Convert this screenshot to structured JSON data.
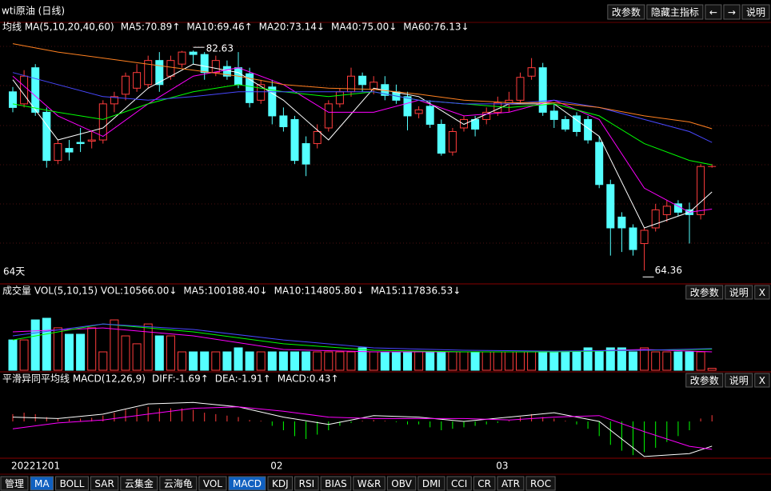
{
  "header": {
    "title": "wti原油 (日线)",
    "buttons": [
      "改参数",
      "隐藏主指标",
      "←",
      "→",
      "说明"
    ]
  },
  "panel_buttons": [
    "改参数",
    "说明",
    "X"
  ],
  "toolbar": [
    {
      "label": "管理",
      "active": false
    },
    {
      "label": "MA",
      "active": true
    },
    {
      "label": "BOLL",
      "active": false
    },
    {
      "label": "SAR",
      "active": false
    },
    {
      "label": "云集金",
      "active": false
    },
    {
      "label": "云海龟",
      "active": false
    },
    {
      "label": "VOL",
      "active": false
    },
    {
      "label": "MACD",
      "active": true
    },
    {
      "label": "KDJ",
      "active": false
    },
    {
      "label": "RSI",
      "active": false
    },
    {
      "label": "BIAS",
      "active": false
    },
    {
      "label": "W&R",
      "active": false
    },
    {
      "label": "OBV",
      "active": false
    },
    {
      "label": "DMI",
      "active": false
    },
    {
      "label": "CCI",
      "active": false
    },
    {
      "label": "CR",
      "active": false
    },
    {
      "label": "ATR",
      "active": false
    },
    {
      "label": "ROC",
      "active": false
    }
  ],
  "chart_data": [
    {
      "type": "candlestick",
      "label": "均线 MA(5,10,20,40,60)",
      "days_label": "64天",
      "up_color": "#ff3c3c",
      "down_color": "#54ffff",
      "ylim": [
        63.45,
        84.3
      ],
      "categories": [
        "20221201",
        null,
        null,
        null,
        null,
        null,
        null,
        null,
        null,
        null,
        null,
        null,
        null,
        null,
        null,
        null,
        null,
        null,
        null,
        null,
        null,
        null,
        null,
        "02",
        null,
        null,
        null,
        null,
        null,
        null,
        null,
        null,
        null,
        null,
        null,
        null,
        null,
        null,
        null,
        null,
        null,
        null,
        null,
        "03",
        null,
        null,
        null,
        null,
        null,
        null,
        null,
        null,
        null,
        null,
        null,
        null,
        null,
        null,
        null,
        null,
        null,
        null,
        null
      ],
      "open": [
        79.2,
        78.2,
        81.2,
        77.5,
        73.5,
        74.5,
        75.0,
        75.1,
        75.2,
        78.2,
        79.0,
        79.5,
        79.8,
        81.8,
        80.5,
        81.5,
        82.5,
        82.3,
        80.8,
        81.3,
        81.2,
        80.7,
        78.5,
        79.6,
        77.2,
        76.9,
        74.9,
        74.9,
        76.2,
        78.2,
        79.2,
        80.5,
        79.4,
        79.8,
        79.2,
        78.8,
        77.4,
        78.0,
        76.5,
        74.2,
        76.2,
        76.9,
        76.9,
        77.5,
        78.2,
        78.5,
        80.5,
        81.2,
        77.6,
        76.9,
        77.2,
        76.9,
        75.0,
        71.5,
        68.8,
        67.9,
        66.6,
        67.9,
        69.0,
        69.9,
        69.4,
        69.0,
        73.0
      ],
      "close": [
        77.9,
        80.5,
        77.5,
        73.5,
        74.9,
        74.2,
        74.9,
        75.2,
        78.2,
        78.8,
        80.5,
        80.8,
        81.8,
        79.8,
        81.8,
        82.5,
        82.3,
        80.8,
        81.8,
        80.5,
        79.8,
        78.3,
        79.8,
        77.2,
        76.3,
        73.5,
        73.2,
        75.9,
        78.2,
        79.2,
        80.5,
        79.8,
        80.0,
        78.9,
        78.5,
        77.2,
        77.7,
        76.5,
        74.1,
        75.9,
        76.9,
        76.1,
        77.5,
        78.3,
        78.5,
        80.4,
        81.2,
        77.5,
        76.9,
        76.1,
        75.9,
        75.2,
        71.5,
        67.9,
        67.9,
        66.1,
        67.7,
        69.4,
        69.7,
        69.2,
        69.0,
        73.0,
        73.0
      ],
      "low": [
        77.5,
        77.9,
        77.2,
        72.9,
        73.2,
        73.5,
        74.2,
        74.5,
        74.9,
        77.5,
        78.5,
        79.2,
        79.5,
        79.2,
        80.2,
        81.2,
        81.5,
        80.2,
        80.5,
        80.2,
        79.5,
        77.9,
        78.2,
        76.5,
        75.9,
        73.2,
        72.2,
        74.5,
        75.9,
        77.9,
        78.8,
        79.2,
        79.0,
        78.5,
        78.2,
        76.0,
        77.0,
        76.2,
        73.9,
        73.9,
        75.9,
        75.5,
        76.5,
        77.2,
        77.5,
        78.2,
        80.2,
        77.2,
        76.2,
        75.9,
        75.5,
        74.9,
        71.2,
        65.6,
        65.9,
        65.6,
        64.36,
        67.6,
        68.4,
        68.9,
        66.6,
        68.6,
        72.9
      ],
      "high": [
        79.6,
        81.0,
        81.5,
        77.9,
        75.2,
        75.2,
        76.2,
        76.0,
        78.5,
        79.2,
        80.8,
        81.5,
        82.2,
        82.5,
        82.2,
        82.6,
        82.63,
        82.5,
        82.2,
        81.8,
        82.5,
        81.2,
        80.2,
        80.2,
        77.9,
        77.2,
        75.5,
        76.5,
        78.5,
        79.5,
        81.2,
        80.8,
        80.5,
        80.5,
        79.8,
        79.2,
        78.0,
        78.5,
        76.9,
        76.2,
        77.2,
        77.2,
        77.9,
        78.8,
        79.2,
        80.8,
        82.0,
        81.6,
        78.2,
        77.2,
        77.5,
        77.2,
        75.5,
        71.9,
        69.2,
        68.2,
        67.9,
        69.9,
        70.2,
        70.2,
        70.0,
        73.2,
        73.2
      ],
      "series": [
        {
          "name": "MA5:70.89↑",
          "color": "#ffffff",
          "x": [
            0,
            4,
            8,
            12,
            16,
            20,
            24,
            28,
            32,
            36,
            40,
            44,
            48,
            52,
            56,
            60,
            62
          ],
          "values": [
            80.2,
            75.2,
            76.2,
            79.5,
            81.5,
            80.8,
            78.5,
            75.2,
            79.5,
            78.8,
            76.5,
            78.2,
            78.2,
            75.5,
            67.9,
            69.2,
            70.89
          ]
        },
        {
          "name": "MA10:69.46↑",
          "color": "#ff00ff",
          "x": [
            0,
            4,
            8,
            12,
            16,
            20,
            24,
            28,
            32,
            36,
            40,
            44,
            48,
            52,
            56,
            60,
            62
          ],
          "values": [
            80.5,
            77.2,
            75.5,
            78.2,
            80.5,
            81.2,
            79.8,
            77.5,
            77.5,
            78.5,
            77.2,
            77.5,
            78.5,
            76.9,
            71.2,
            69.2,
            69.46
          ]
        },
        {
          "name": "MA20:73.14↓",
          "color": "#00ff00",
          "x": [
            0,
            4,
            8,
            12,
            16,
            20,
            24,
            28,
            32,
            36,
            40,
            44,
            48,
            52,
            56,
            60,
            62
          ],
          "values": [
            78.2,
            77.5,
            76.9,
            78.2,
            79.2,
            79.8,
            79.2,
            78.8,
            79.2,
            78.5,
            78.2,
            77.9,
            78.2,
            77.2,
            74.9,
            73.5,
            73.14
          ]
        },
        {
          "name": "MA40:75.00↓",
          "color": "#4848ff",
          "x": [
            0,
            4,
            8,
            12,
            16,
            20,
            24,
            28,
            32,
            36,
            40,
            44,
            48,
            52,
            56,
            60,
            62
          ],
          "values": [
            80.8,
            79.8,
            78.8,
            78.5,
            78.8,
            79.2,
            79.2,
            79.2,
            79.2,
            78.5,
            78.2,
            78.2,
            78.5,
            77.9,
            76.9,
            75.9,
            75.0
          ]
        },
        {
          "name": "MA60:76.13↓",
          "color": "#ff8020",
          "x": [
            0,
            4,
            8,
            12,
            16,
            20,
            24,
            28,
            32,
            36,
            40,
            44,
            48,
            52,
            56,
            60,
            62
          ],
          "values": [
            83.2,
            82.5,
            82.0,
            81.5,
            81.0,
            80.5,
            79.8,
            79.5,
            79.4,
            79.0,
            78.5,
            78.3,
            78.3,
            77.9,
            77.2,
            76.7,
            76.13
          ]
        }
      ]
    },
    {
      "type": "bar",
      "label": "成交量 VOL(5,10,15) VOL:10566.00↓",
      "ylim": [
        0,
        396000
      ],
      "values": [
        165000,
        165000,
        274000,
        283000,
        231000,
        196000,
        196000,
        231000,
        100000,
        274000,
        187000,
        144000,
        252000,
        187000,
        187000,
        100000,
        100000,
        100000,
        100000,
        100000,
        122000,
        100000,
        100000,
        100000,
        100000,
        100000,
        100000,
        100000,
        100000,
        100000,
        100000,
        122000,
        100000,
        100000,
        100000,
        100000,
        100000,
        100000,
        100000,
        100000,
        100000,
        100000,
        100000,
        100000,
        100000,
        100000,
        100000,
        100000,
        100000,
        100000,
        100000,
        122000,
        100000,
        122000,
        122000,
        100000,
        122000,
        100000,
        100000,
        100000,
        100000,
        100000,
        10566
      ],
      "series": [
        {
          "name": "MA5:100188.40↓",
          "color": "#ff00ff",
          "x": [
            0,
            8,
            16,
            24,
            32,
            40,
            48,
            56,
            62
          ],
          "values": [
            209000,
            230000,
            187000,
            113000,
            100000,
            100000,
            100000,
            113000,
            100188.4
          ]
        },
        {
          "name": "MA10:114805.80↓",
          "color": "#00ff00",
          "x": [
            0,
            8,
            16,
            24,
            32,
            40,
            48,
            56,
            62
          ],
          "values": [
            165000,
            252000,
            209000,
            144000,
            109000,
            100000,
            100000,
            109000,
            114805.8
          ]
        },
        {
          "name": "MA15:117836.53↓",
          "color": "#4848ff",
          "x": [
            0,
            8,
            16,
            24,
            32,
            40,
            48,
            56,
            62
          ],
          "values": [
            187000,
            252000,
            222000,
            165000,
            122000,
            109000,
            104000,
            109000,
            117836.53
          ]
        }
      ]
    },
    {
      "type": "macd",
      "label": "平滑异同平均线 MACD(12,26,9)",
      "values_name": "MACD:0.43↑",
      "values_color": "#ffff00",
      "up_color": "#ff3c3c",
      "down_color": "#00ff00",
      "ylim": [
        -2.46,
        2.3
      ],
      "values": [
        0.5,
        0.6,
        0.5,
        0.3,
        0.2,
        0.15,
        0.2,
        0.25,
        0.4,
        0.6,
        0.8,
        0.9,
        1.0,
        0.9,
        0.9,
        0.9,
        0.8,
        0.6,
        0.5,
        0.4,
        0.3,
        0.1,
        0.05,
        -0.3,
        -0.6,
        -1.0,
        -1.2,
        -0.9,
        -0.6,
        -0.3,
        -0.1,
        0.05,
        0.1,
        0.05,
        -0.05,
        -0.2,
        -0.2,
        -0.4,
        -0.6,
        -0.5,
        -0.4,
        -0.3,
        -0.2,
        -0.1,
        0.05,
        0.3,
        0.5,
        0.3,
        0.2,
        0.05,
        -0.2,
        -0.5,
        -1.0,
        -1.6,
        -2.0,
        -2.3,
        -2.1,
        -1.8,
        -1.4,
        -1.0,
        -0.6,
        0.2,
        0.43
      ],
      "series": [
        {
          "name": "DIFF:-1.69↑",
          "color": "#ffffff",
          "x": [
            0,
            4,
            8,
            12,
            16,
            20,
            24,
            28,
            32,
            36,
            40,
            44,
            48,
            52,
            56,
            60,
            62
          ],
          "values": [
            0.3,
            0.2,
            0.5,
            1.2,
            1.3,
            1.0,
            0.3,
            -0.2,
            0.4,
            0.3,
            0.0,
            0.3,
            0.6,
            0.0,
            -2.4,
            -2.2,
            -1.69
          ]
        },
        {
          "name": "DEA:-1.91↑",
          "color": "#ff00ff",
          "x": [
            0,
            4,
            8,
            12,
            16,
            20,
            24,
            28,
            32,
            36,
            40,
            44,
            48,
            52,
            56,
            60,
            62
          ],
          "values": [
            -0.5,
            -0.1,
            0.1,
            0.5,
            0.9,
            1.0,
            0.7,
            0.3,
            0.2,
            0.2,
            0.2,
            0.1,
            0.3,
            0.4,
            -0.7,
            -1.7,
            -1.91
          ]
        }
      ]
    }
  ]
}
